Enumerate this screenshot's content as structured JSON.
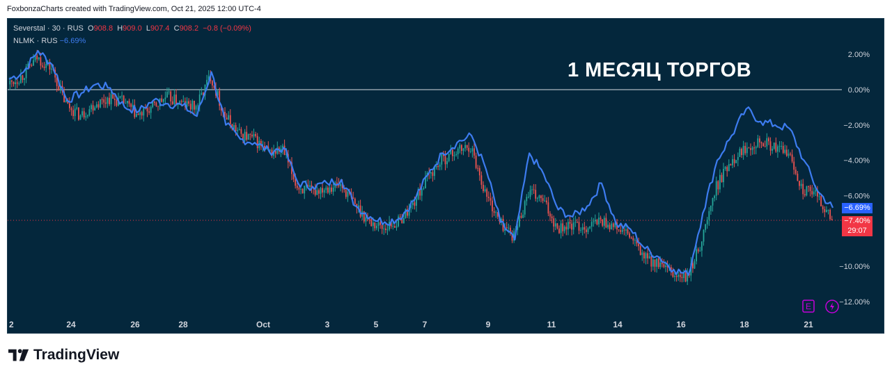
{
  "header": {
    "credit": "FoxbonzaCharts created with TradingView.com, Oct 21, 2025 12:00 UTC-4"
  },
  "legend": {
    "main_symbol": "Severstal · 30 · RUS",
    "o_label": "O",
    "o_value": "908.8",
    "h_label": "H",
    "h_value": "909.0",
    "l_label": "L",
    "l_value": "907.4",
    "c_label": "C",
    "c_value": "908.2",
    "change": "−0.8 (−0.09%)",
    "compare_symbol": "NLMK · RUS",
    "compare_change": "−6.69%"
  },
  "annotation": "1 МЕСЯЦ ТОРГОВ",
  "tags": {
    "nlmk": "−6.69%",
    "severstal": "−7.40%",
    "countdown": "29:07"
  },
  "toolbar": {
    "earnings_icon_label": "E"
  },
  "brand": {
    "name": "TradingView"
  },
  "colors": {
    "background": "#04273c",
    "nlmk_line": "#3d7cf0",
    "up_candle": "#26a69a",
    "down_candle": "#ef5350",
    "price_line": "#f23645",
    "zero_line": "#ffffff",
    "axis_text": "#d1d4dc",
    "icon_purple": "#c300d9"
  },
  "chart_data": {
    "type": "line",
    "title": "",
    "y_unit": "%",
    "ylim": [
      -12.5,
      2.9
    ],
    "x_ticks": [
      "2",
      "24",
      "26",
      "28",
      "Oct",
      "3",
      "5",
      "7",
      "9",
      "11",
      "14",
      "16",
      "18",
      "21"
    ],
    "y_ticks": [
      "2.00%",
      "0.00%",
      "−2.00%",
      "−4.00%",
      "−6.00%",
      "−8.00%",
      "−10.00%",
      "−12.00%"
    ],
    "grid": false,
    "series": [
      {
        "name": "Severstal · 30 · RUS",
        "style": "candles",
        "x": [
          "2",
          "22.5",
          "23",
          "23.5",
          "24",
          "24.5",
          "25",
          "25.5",
          "26",
          "26.5",
          "27",
          "27.5",
          "28",
          "28.5",
          "29",
          "29.5",
          "30",
          "30.5",
          "Oct",
          "Oct 1.5",
          "2",
          "2.5",
          "3",
          "3.5",
          "4",
          "4.5",
          "5",
          "5.5",
          "6",
          "6.5",
          "7",
          "7.5",
          "8",
          "8.5",
          "9",
          "9.5",
          "10",
          "10.5",
          "11",
          "11.5",
          "12",
          "13",
          "14",
          "14.5",
          "15",
          "15.5",
          "16",
          "16.5",
          "17",
          "17.5",
          "18",
          "18.5",
          "19",
          "19.5",
          "20",
          "20.5",
          "21",
          "21.5"
        ],
        "values": [
          0.3,
          0.8,
          1.8,
          1.2,
          -0.8,
          -1.5,
          -0.8,
          -0.5,
          -0.7,
          -1.5,
          -1.0,
          -0.4,
          -0.8,
          -1.0,
          0.8,
          -1.5,
          -2.5,
          -2.8,
          -3.6,
          -3.4,
          -5.5,
          -5.8,
          -5.5,
          -5.4,
          -6.5,
          -7.5,
          -7.8,
          -7.5,
          -6.5,
          -5.0,
          -4.0,
          -3.5,
          -3.2,
          -5.8,
          -7.5,
          -8.3,
          -5.8,
          -6.3,
          -7.8,
          -7.7,
          -7.8,
          -7.4,
          -7.8,
          -8.3,
          -9.5,
          -9.9,
          -10.5,
          -10.7,
          -8.5,
          -5.5,
          -4.0,
          -3.3,
          -2.8,
          -3.3,
          -3.6,
          -5.7,
          -6.0,
          -7.4
        ]
      },
      {
        "name": "NLMK · RUS",
        "style": "line",
        "x": [
          "2",
          "22.5",
          "23",
          "23.5",
          "24",
          "24.5",
          "25",
          "25.5",
          "26",
          "26.5",
          "27",
          "27.5",
          "28",
          "28.5",
          "29",
          "29.5",
          "30",
          "30.5",
          "Oct",
          "Oct 1.5",
          "2",
          "2.5",
          "3",
          "3.5",
          "4",
          "4.5",
          "5",
          "5.5",
          "6",
          "6.5",
          "7",
          "7.5",
          "8",
          "8.5",
          "9",
          "9.5",
          "10",
          "10.5",
          "11",
          "11.5",
          "12",
          "13",
          "14",
          "14.5",
          "15",
          "15.5",
          "16",
          "16.5",
          "17",
          "17.5",
          "18",
          "18.5",
          "19",
          "19.5",
          "20",
          "20.5",
          "21",
          "21.5"
        ],
        "values": [
          0.6,
          1.0,
          2.2,
          1.4,
          -0.6,
          -0.2,
          0.3,
          0.1,
          -1.0,
          -1.2,
          -0.6,
          -0.8,
          -0.9,
          -1.5,
          1.0,
          -2.0,
          -2.8,
          -3.0,
          -3.5,
          -3.3,
          -5.3,
          -5.5,
          -5.3,
          -5.1,
          -6.6,
          -7.2,
          -7.5,
          -7.3,
          -6.3,
          -4.8,
          -3.6,
          -3.0,
          -2.6,
          -4.5,
          -7.5,
          -8.5,
          -3.6,
          -4.8,
          -6.8,
          -7.2,
          -6.6,
          -5.3,
          -7.6,
          -7.9,
          -9.0,
          -9.5,
          -10.2,
          -10.5,
          -7.0,
          -4.0,
          -2.6,
          -1.1,
          -1.8,
          -2.0,
          -2.2,
          -4.0,
          -5.8,
          -6.69
        ]
      }
    ]
  }
}
